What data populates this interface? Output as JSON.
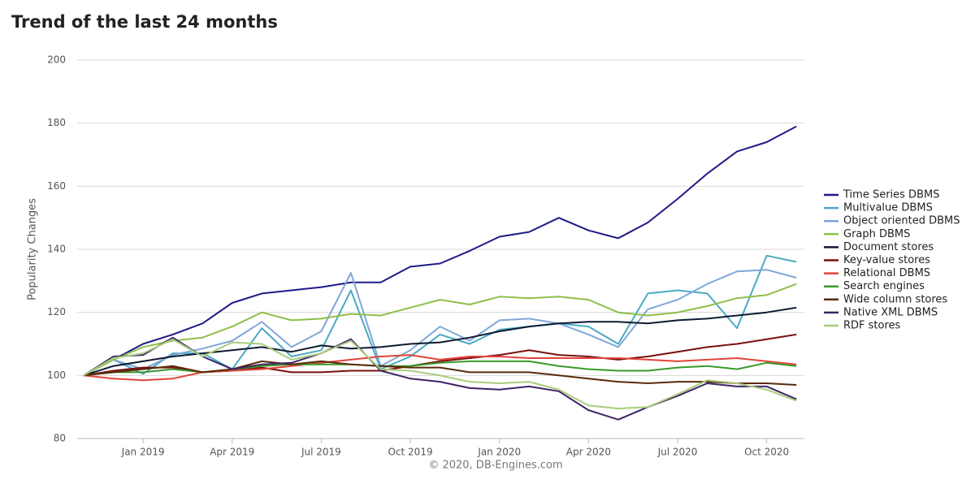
{
  "chart_data": {
    "type": "line",
    "title": "Trend of the last 24 months",
    "y_label": "Popularity Changes",
    "footer": "© 2020, DB-Engines.com",
    "categories": [
      null,
      null,
      "Jan 2019",
      null,
      null,
      "Apr 2019",
      null,
      null,
      "Jul 2019",
      null,
      null,
      "Oct 2019",
      null,
      null,
      "Jan 2020",
      null,
      null,
      "Apr 2020",
      null,
      null,
      "Jul 2020",
      null,
      null,
      "Oct 2020",
      null
    ],
    "ylim": [
      80,
      200
    ],
    "yticks": [
      80,
      100,
      120,
      140,
      160,
      180,
      200
    ],
    "grid": true,
    "legend": "right",
    "series": [
      {
        "name": "Time Series DBMS",
        "color": "#1f1a86",
        "values": [
          100,
          105,
          110,
          113,
          116.5,
          123,
          126,
          127,
          128,
          129.5,
          129.5,
          134.5,
          135.5,
          139.5,
          144,
          145.5,
          150,
          146,
          143.5,
          148.5,
          156,
          164,
          171,
          174,
          179
        ]
      },
      {
        "name": "Multivalue DBMS",
        "color": "#4aa9c4",
        "values": [
          100,
          105,
          100.5,
          107,
          107,
          102,
          115,
          106,
          108,
          127,
          102,
          106,
          113,
          110,
          114.5,
          115.5,
          116.5,
          115.5,
          110,
          126,
          127,
          126,
          115,
          138,
          136
        ]
      },
      {
        "name": "Object oriented DBMS",
        "color": "#7fa7d8",
        "values": [
          100,
          105,
          102,
          106.5,
          108.5,
          111,
          117,
          109,
          114,
          132.5,
          103,
          108,
          115.5,
          111,
          117.5,
          118,
          116.5,
          113,
          109,
          121,
          124,
          129,
          133,
          133.5,
          131
        ]
      },
      {
        "name": "Graph DBMS",
        "color": "#8fbf4a",
        "values": [
          100,
          105,
          109,
          111,
          112,
          115.5,
          120,
          117.5,
          118,
          119.5,
          119,
          121.5,
          124,
          122.5,
          125,
          124.5,
          125,
          124,
          120,
          119,
          120,
          122,
          124.5,
          125.5,
          129
        ]
      },
      {
        "name": "Document stores",
        "color": "#0e1a33",
        "values": [
          100,
          103,
          104.5,
          106,
          107,
          108,
          109,
          107.5,
          109.5,
          108.5,
          109,
          110,
          110.5,
          112,
          114,
          115.5,
          116.5,
          117,
          117,
          116.5,
          117.5,
          118,
          119,
          120,
          121.5
        ]
      },
      {
        "name": "Key-value stores",
        "color": "#7a1010",
        "values": [
          100,
          101.5,
          102.5,
          102.5,
          101,
          101.5,
          102.5,
          101,
          101,
          101.5,
          101.5,
          103,
          104.5,
          105.5,
          106.5,
          108,
          106.5,
          106,
          105,
          106,
          107.5,
          109,
          110,
          111.5,
          113
        ]
      },
      {
        "name": "Relational DBMS",
        "color": "#e0443a",
        "values": [
          100,
          99,
          98.5,
          99,
          101,
          101.5,
          102,
          103,
          104,
          105,
          106,
          106.5,
          105,
          106,
          106,
          105.5,
          105.5,
          105.5,
          105.5,
          105,
          104.5,
          105,
          105.5,
          104.5,
          103.5
        ]
      },
      {
        "name": "Search engines",
        "color": "#3a9a2a",
        "values": [
          100,
          101,
          101,
          102,
          101,
          102,
          103,
          103.5,
          103.5,
          103.5,
          103,
          103,
          104,
          104.5,
          104.5,
          104.5,
          103,
          102,
          101.5,
          101.5,
          102.5,
          103,
          102,
          104,
          103
        ]
      },
      {
        "name": "Wide column stores",
        "color": "#5a2a0a",
        "values": [
          100,
          101,
          102,
          103,
          101,
          102,
          104.5,
          103.5,
          104.5,
          103.5,
          103,
          102.5,
          102.5,
          101,
          101,
          101,
          100,
          99,
          98,
          97.5,
          98,
          98,
          97.5,
          97.5,
          97
        ]
      },
      {
        "name": "Native XML DBMS",
        "color": "#3c2466",
        "values": [
          100,
          106,
          106.5,
          112,
          106,
          102,
          103.5,
          104,
          107,
          111.5,
          101.5,
          99,
          98,
          96,
          95.5,
          96.5,
          95,
          89,
          86,
          90,
          93.5,
          97.5,
          96.5,
          96.5,
          92.5
        ]
      },
      {
        "name": "RDF stores",
        "color": "#a8cc7a",
        "values": [
          100,
          105.5,
          107,
          111.5,
          106,
          110.5,
          110,
          105,
          107,
          111,
          102,
          101.5,
          100,
          98,
          97.5,
          98,
          95.5,
          90.5,
          89.5,
          90,
          94,
          98.5,
          97.5,
          95.5,
          92
        ]
      }
    ]
  }
}
